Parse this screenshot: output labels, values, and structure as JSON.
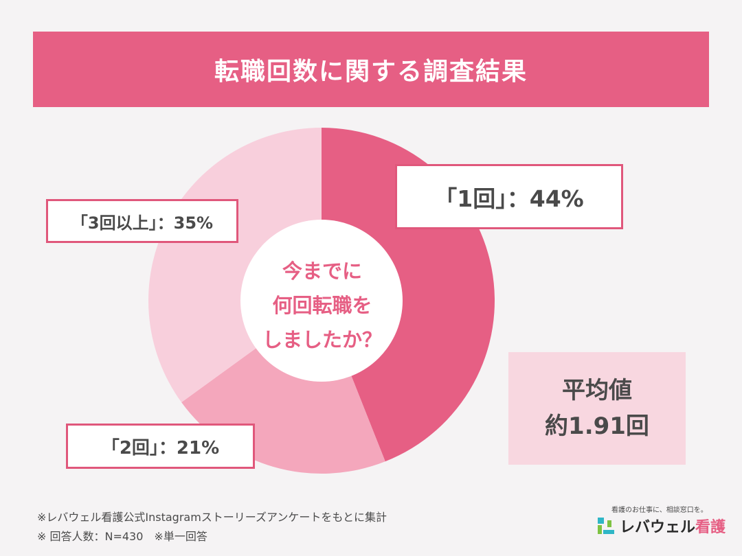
{
  "title": "転職回数に関する調査結果",
  "colors": {
    "background": "#f5f3f4",
    "title_bar": "#e65f84",
    "slice_1": "#e65f84",
    "slice_2": "#f4a7bc",
    "slice_3": "#f8cfdc",
    "center_text": "#e65f84",
    "avg_box": "#f8d7e0"
  },
  "chart_data": {
    "type": "pie",
    "style": "donut",
    "categories": [
      "1回",
      "2回",
      "3回以上"
    ],
    "values": [
      44,
      21,
      35
    ],
    "labels": [
      "「1回」：44%",
      "「2回」：21%",
      "「3回以上」：35%"
    ],
    "center_text": [
      "今までに",
      "何回転職を",
      "しましたか？"
    ]
  },
  "average": {
    "label": "平均値",
    "value": "約1.91回"
  },
  "footnotes": {
    "source": "※レバウェル看護公式Instagramストーリーズアンケートをもとに集計",
    "sample": "※ 回答人数：N=430　※単一回答"
  },
  "logo": {
    "tagline": "看護のお仕事に、相談窓口を。",
    "name_main": "レバウェル",
    "name_accent": "看護",
    "icon": "levwell-logo-icon"
  }
}
